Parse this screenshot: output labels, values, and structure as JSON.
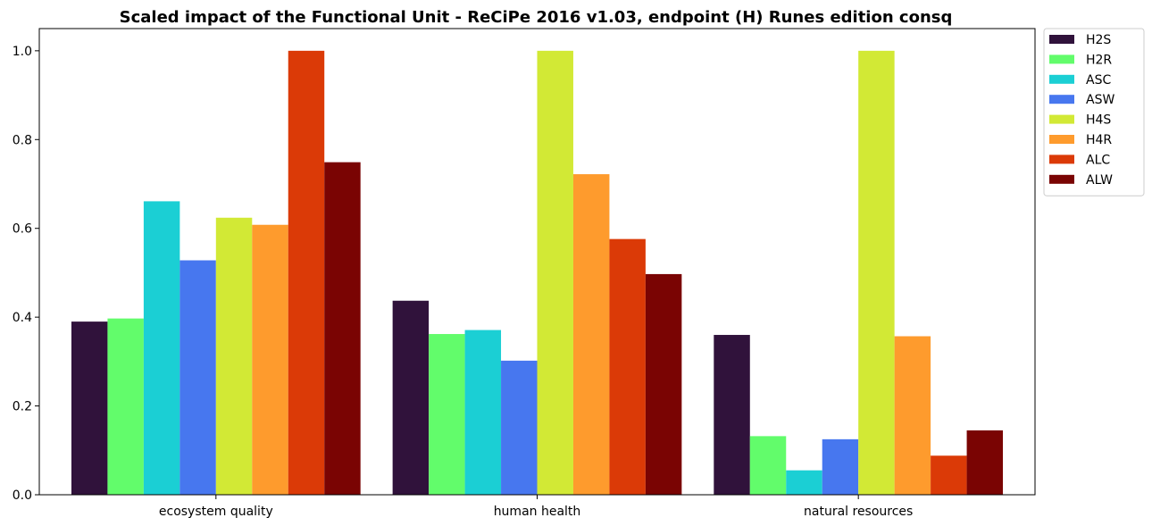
{
  "chart_data": {
    "type": "bar",
    "title": "Scaled impact of the Functional Unit - ReCiPe 2016 v1.03, endpoint (H) Runes edition consq",
    "xlabel": "",
    "ylabel": "",
    "categories": [
      "ecosystem quality",
      "human health",
      "natural resources"
    ],
    "ylim": [
      0,
      1.05
    ],
    "yticks": [
      "0.0",
      "0.2",
      "0.4",
      "0.6",
      "0.8",
      "1.0"
    ],
    "legend_position": "outside-top-right",
    "grid": false,
    "series": [
      {
        "name": "H2S",
        "color": "#30123b",
        "values": [
          0.39,
          0.437,
          0.36
        ]
      },
      {
        "name": "H2R",
        "color": "#62fc6b",
        "values": [
          0.397,
          0.362,
          0.132
        ]
      },
      {
        "name": "ASC",
        "color": "#1bcfd4",
        "values": [
          0.661,
          0.371,
          0.055
        ]
      },
      {
        "name": "ASW",
        "color": "#4777ef",
        "values": [
          0.528,
          0.302,
          0.125
        ]
      },
      {
        "name": "H4S",
        "color": "#d2e935",
        "values": [
          0.624,
          1.0,
          1.0
        ]
      },
      {
        "name": "H4R",
        "color": "#fe9b2d",
        "values": [
          0.608,
          0.722,
          0.357
        ]
      },
      {
        "name": "ALC",
        "color": "#db3a07",
        "values": [
          1.0,
          0.576,
          0.088
        ]
      },
      {
        "name": "ALW",
        "color": "#7a0403",
        "values": [
          0.749,
          0.497,
          0.145
        ]
      }
    ]
  }
}
